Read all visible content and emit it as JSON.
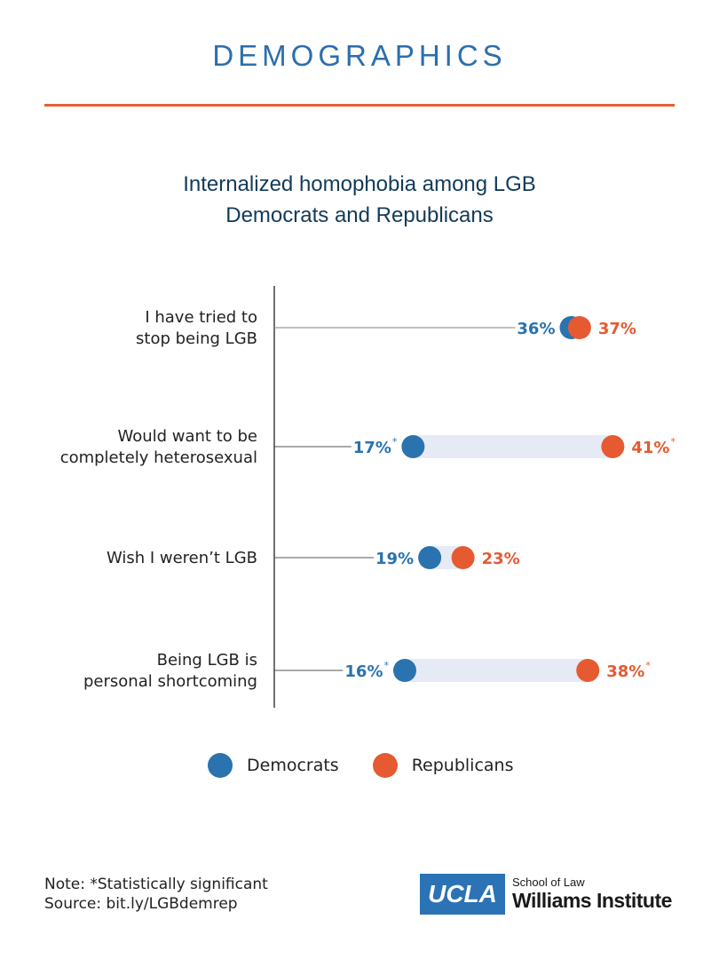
{
  "header": {
    "section": "DEMOGRAPHICS"
  },
  "colors": {
    "democrats": "#2a73ae",
    "republicans": "#e55a31",
    "band": "#e6eaf5",
    "axis": "#222222",
    "rule": "#e5603a",
    "title": "#123b5a"
  },
  "chart_data": {
    "type": "dumbbell",
    "title": "Internalized homophobia among LGB Democrats and Republicans",
    "title_lines": [
      "Internalized homophobia among LGB",
      "Democrats and Republicans"
    ],
    "unit": "%",
    "xlim": [
      0,
      45
    ],
    "categories": [
      {
        "label_lines": [
          "I have tried to",
          "stop being LGB"
        ],
        "label": "I have tried to stop being LGB"
      },
      {
        "label_lines": [
          "Would want to be",
          "completely heterosexual"
        ],
        "label": "Would want to be completely heterosexual"
      },
      {
        "label_lines": [
          "Wish I weren’t LGB"
        ],
        "label": "Wish I weren’t LGB"
      },
      {
        "label_lines": [
          "Being LGB is",
          "personal shortcoming"
        ],
        "label": "Being LGB is personal shortcoming"
      }
    ],
    "series": [
      {
        "name": "Democrats",
        "values": [
          36,
          17,
          19,
          16
        ]
      },
      {
        "name": "Republicans",
        "values": [
          37,
          41,
          23,
          38
        ]
      }
    ],
    "significant": [
      false,
      true,
      false,
      true
    ],
    "significance_marker": "*"
  },
  "legend": {
    "items": [
      "Democrats",
      "Republicans"
    ]
  },
  "footer": {
    "note": "Note: *Statistically significant",
    "source": "Source: bit.ly/LGBdemrep"
  },
  "logo": {
    "ucla": "UCLA",
    "school": "School of Law",
    "institute": "Williams Institute"
  }
}
